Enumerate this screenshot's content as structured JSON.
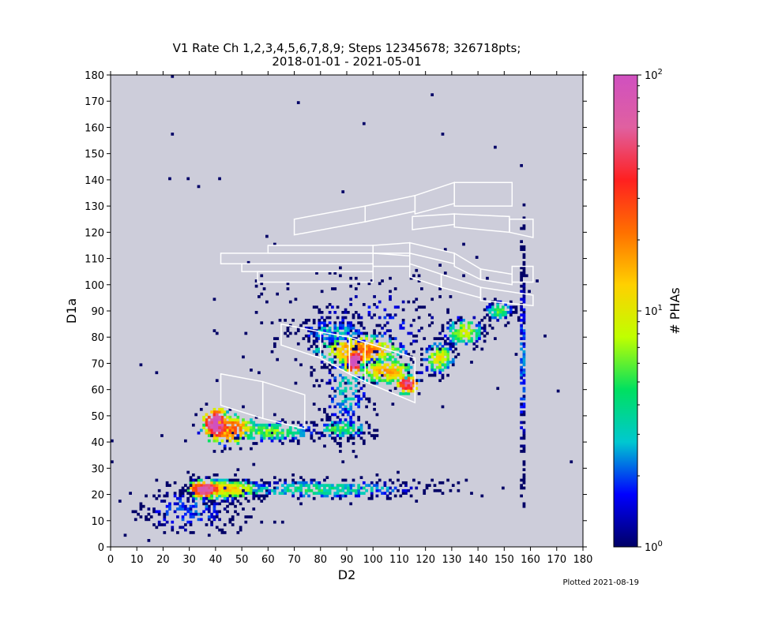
{
  "chart_data": {
    "type": "heatmap",
    "title_line1": "V1 Rate Ch 1,2,3,4,5,6,7,8,9; Steps 12345678; 326718pts;",
    "title_line2": "2018-01-01 - 2021-05-01",
    "xlabel": "D2",
    "ylabel": "D1a",
    "xlim": [
      0,
      180
    ],
    "ylim": [
      0,
      180
    ],
    "xticks": [
      0,
      10,
      20,
      30,
      40,
      50,
      60,
      70,
      80,
      90,
      100,
      110,
      120,
      130,
      140,
      150,
      160,
      170,
      180
    ],
    "yticks": [
      0,
      10,
      20,
      30,
      40,
      50,
      60,
      70,
      80,
      90,
      100,
      110,
      120,
      130,
      140,
      150,
      160,
      170,
      180
    ],
    "background_color": "#cdcdda",
    "colorbar": {
      "label": "# PHAs",
      "scale": "log",
      "range": [
        1,
        100
      ],
      "tick_labels": [
        {
          "base": "10",
          "exp": "2",
          "value": 100
        },
        {
          "base": "10",
          "exp": "1",
          "value": 10
        },
        {
          "base": "10",
          "exp": "0",
          "value": 1
        }
      ],
      "colormap_stops": [
        "#000066",
        "#0000ff",
        "#00c8d0",
        "#00e060",
        "#c0ff00",
        "#ffd000",
        "#ff7000",
        "#ff2020",
        "#e060a0",
        "#d050c0"
      ]
    },
    "clusters": [
      {
        "x": 40,
        "y": 47,
        "sx": 2.2,
        "sy": 2.8,
        "peak": 100,
        "n": 160
      },
      {
        "x": 45,
        "y": 45,
        "sx": 5,
        "sy": 3,
        "peak": 25,
        "n": 180
      },
      {
        "x": 60,
        "y": 44,
        "sx": 10,
        "sy": 2,
        "peak": 6,
        "n": 200
      },
      {
        "x": 88,
        "y": 45,
        "sx": 6,
        "sy": 2,
        "peak": 5,
        "n": 120
      },
      {
        "x": 36,
        "y": 22,
        "sx": 3,
        "sy": 1.6,
        "peak": 70,
        "n": 160
      },
      {
        "x": 45,
        "y": 22,
        "sx": 7,
        "sy": 2,
        "peak": 12,
        "n": 240
      },
      {
        "x": 80,
        "y": 22,
        "sx": 22,
        "sy": 2,
        "peak": 4,
        "n": 420
      },
      {
        "x": 30,
        "y": 14,
        "sx": 12,
        "sy": 6,
        "peak": 2,
        "n": 250
      },
      {
        "x": 93,
        "y": 71,
        "sx": 1.8,
        "sy": 2.2,
        "peak": 100,
        "n": 90
      },
      {
        "x": 113,
        "y": 62,
        "sx": 2,
        "sy": 1.6,
        "peak": 60,
        "n": 90
      },
      {
        "x": 95,
        "y": 75,
        "sx": 8,
        "sy": 3,
        "peak": 20,
        "n": 250
      },
      {
        "x": 105,
        "y": 67,
        "sx": 6,
        "sy": 2.5,
        "peak": 15,
        "n": 200
      },
      {
        "x": 90,
        "y": 60,
        "sx": 5,
        "sy": 10,
        "peak": 3,
        "n": 200
      },
      {
        "x": 85,
        "y": 82,
        "sx": 8,
        "sy": 3,
        "peak": 3,
        "n": 180
      },
      {
        "x": 125,
        "y": 72,
        "sx": 3,
        "sy": 3,
        "peak": 10,
        "n": 150
      },
      {
        "x": 135,
        "y": 82,
        "sx": 4,
        "sy": 3,
        "peak": 8,
        "n": 140
      },
      {
        "x": 148,
        "y": 90,
        "sx": 3,
        "sy": 2,
        "peak": 5,
        "n": 100
      },
      {
        "x": 157,
        "y": 70,
        "sx": 0.4,
        "sy": 25,
        "peak": 4,
        "n": 200
      },
      {
        "x": 100,
        "y": 85,
        "sx": 25,
        "sy": 12,
        "peak": 1.5,
        "n": 300
      }
    ],
    "stray_points": [
      [
        23,
        179
      ],
      [
        122,
        172
      ],
      [
        71,
        169
      ],
      [
        96,
        161
      ],
      [
        23,
        157
      ],
      [
        126,
        157
      ],
      [
        146,
        152
      ],
      [
        22,
        140
      ],
      [
        29,
        140
      ],
      [
        41,
        140
      ],
      [
        33,
        137
      ],
      [
        88,
        135
      ],
      [
        11,
        69
      ],
      [
        175,
        32
      ],
      [
        0,
        32
      ],
      [
        0,
        40
      ]
    ],
    "regions": [
      [
        [
          42,
          66
        ],
        [
          58,
          63
        ],
        [
          58,
          49
        ],
        [
          42,
          54
        ]
      ],
      [
        [
          58,
          63
        ],
        [
          74,
          58
        ],
        [
          74,
          45
        ],
        [
          58,
          49
        ]
      ],
      [
        [
          65,
          85
        ],
        [
          80,
          82
        ],
        [
          80,
          72
        ],
        [
          65,
          77
        ]
      ],
      [
        [
          80,
          82
        ],
        [
          91,
          80
        ],
        [
          91,
          66
        ],
        [
          80,
          72
        ]
      ],
      [
        [
          91,
          80
        ],
        [
          97,
          78
        ],
        [
          97,
          63
        ],
        [
          91,
          66
        ]
      ],
      [
        [
          97,
          78
        ],
        [
          116,
          72
        ],
        [
          116,
          55
        ],
        [
          97,
          63
        ]
      ],
      [
        [
          42,
          112
        ],
        [
          100,
          112
        ],
        [
          100,
          108
        ],
        [
          42,
          108
        ]
      ],
      [
        [
          60,
          115
        ],
        [
          100,
          115
        ],
        [
          100,
          112
        ],
        [
          60,
          112
        ]
      ],
      [
        [
          50,
          108
        ],
        [
          100,
          108
        ],
        [
          100,
          105
        ],
        [
          50,
          105
        ]
      ],
      [
        [
          56,
          105
        ],
        [
          100,
          105
        ],
        [
          100,
          101
        ],
        [
          56,
          101
        ]
      ],
      [
        [
          70,
          125
        ],
        [
          97,
          130
        ],
        [
          97,
          124
        ],
        [
          70,
          119
        ]
      ],
      [
        [
          97,
          130
        ],
        [
          116,
          134
        ],
        [
          116,
          128
        ],
        [
          97,
          124
        ]
      ],
      [
        [
          116,
          134
        ],
        [
          131,
          139
        ],
        [
          131,
          131
        ],
        [
          116,
          127
        ]
      ],
      [
        [
          131,
          139
        ],
        [
          153,
          139
        ],
        [
          153,
          130
        ],
        [
          131,
          130
        ]
      ],
      [
        [
          115,
          126
        ],
        [
          131,
          127
        ],
        [
          131,
          123
        ],
        [
          115,
          121
        ]
      ],
      [
        [
          131,
          127
        ],
        [
          152,
          126
        ],
        [
          152,
          120
        ],
        [
          131,
          122
        ]
      ],
      [
        [
          152,
          125
        ],
        [
          161,
          125
        ],
        [
          161,
          118
        ],
        [
          152,
          120
        ]
      ],
      [
        [
          100,
          115
        ],
        [
          114,
          116
        ],
        [
          114,
          111
        ],
        [
          100,
          112
        ]
      ],
      [
        [
          114,
          116
        ],
        [
          131,
          112
        ],
        [
          131,
          108
        ],
        [
          114,
          112
        ]
      ],
      [
        [
          131,
          112
        ],
        [
          141,
          106
        ],
        [
          141,
          102
        ],
        [
          131,
          107
        ]
      ],
      [
        [
          141,
          106
        ],
        [
          153,
          104
        ],
        [
          153,
          100
        ],
        [
          141,
          102
        ]
      ],
      [
        [
          153,
          107
        ],
        [
          161,
          107
        ],
        [
          161,
          101
        ],
        [
          153,
          101
        ]
      ],
      [
        [
          100,
          112
        ],
        [
          114,
          112
        ],
        [
          114,
          107
        ],
        [
          100,
          107
        ]
      ],
      [
        [
          114,
          108
        ],
        [
          126,
          104
        ],
        [
          126,
          99
        ],
        [
          114,
          103
        ]
      ],
      [
        [
          126,
          104
        ],
        [
          141,
          99
        ],
        [
          141,
          95
        ],
        [
          126,
          99
        ]
      ],
      [
        [
          141,
          99
        ],
        [
          161,
          96
        ],
        [
          161,
          92
        ],
        [
          141,
          94
        ]
      ]
    ]
  },
  "footer": {
    "plotted": "Plotted 2021-08-19"
  }
}
